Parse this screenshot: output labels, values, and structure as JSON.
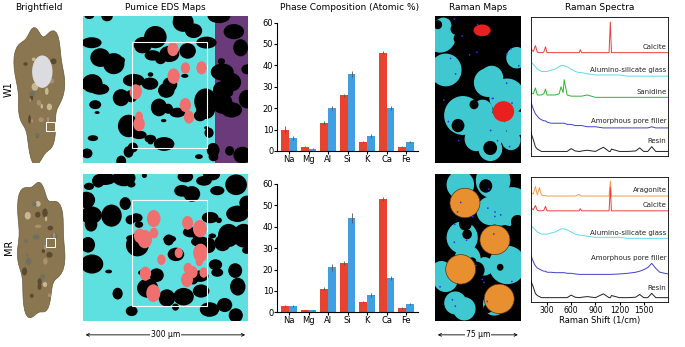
{
  "panels": {
    "headers": [
      "Brightfield",
      "Pumice EDS Maps",
      "Phase Composition (Atomic %)",
      "Raman Maps",
      "Raman Spectra"
    ],
    "rows": [
      "W1",
      "MR"
    ],
    "scale_bars": [
      "300 µm",
      "75 µm"
    ]
  },
  "chart_data": [
    {
      "type": "bar",
      "categories": [
        "Na",
        "Mg",
        "Al",
        "Si",
        "K",
        "Ca",
        "Fe"
      ],
      "ylim": [
        0,
        60
      ],
      "yticks": [
        0,
        10,
        20,
        30,
        40,
        50,
        60
      ],
      "grid": false,
      "series": [
        {
          "color": "#e8432e",
          "values": [
            10,
            2,
            13,
            26,
            4,
            46,
            2
          ],
          "error": [
            1.5,
            0.3,
            0.8,
            0.8,
            0.5,
            0.5,
            0.3
          ]
        },
        {
          "color": "#3f9fe0",
          "values": [
            6,
            1,
            20,
            36,
            7,
            20,
            4
          ],
          "error": [
            1,
            0.3,
            1,
            1.5,
            0.8,
            0.8,
            0.5
          ]
        }
      ]
    },
    {
      "type": "bar",
      "categories": [
        "Na",
        "Mg",
        "Al",
        "Si",
        "K",
        "Ca",
        "Fe"
      ],
      "ylim": [
        0,
        60
      ],
      "yticks": [
        0,
        10,
        20,
        30,
        40,
        50,
        60
      ],
      "grid": false,
      "series": [
        {
          "color": "#e8432e",
          "values": [
            3,
            1,
            11,
            23,
            5,
            53,
            2
          ],
          "error": [
            0.6,
            0.3,
            0.8,
            0.8,
            0.5,
            1,
            0.3
          ]
        },
        {
          "color": "#3f9fe0",
          "values": [
            3,
            1,
            21,
            44,
            8,
            16,
            4
          ],
          "error": [
            0.5,
            0.2,
            1.5,
            2.5,
            1,
            1,
            0.5
          ]
        }
      ]
    },
    {
      "type": "line",
      "tick_labels": false,
      "xlim": [
        100,
        1800
      ],
      "ylim": [
        -0.1,
        5.8
      ],
      "x": [
        100,
        130,
        156,
        180,
        206,
        230,
        260,
        282,
        300,
        350,
        400,
        450,
        475,
        500,
        513,
        550,
        600,
        650,
        700,
        712,
        730,
        800,
        900,
        1000,
        1070,
        1086,
        1100,
        1200,
        1300,
        1400,
        1450,
        1500,
        1550,
        1600,
        1650,
        1700,
        1800
      ],
      "series": [
        {
          "name": "Calcite",
          "color": "#e8413a",
          "line_style": "solid",
          "values": [
            4.45,
            4.35,
            4.6,
            4.32,
            4.3,
            4.3,
            4.32,
            4.55,
            4.3,
            4.3,
            4.3,
            4.3,
            4.3,
            4.3,
            4.3,
            4.3,
            4.3,
            4.3,
            4.3,
            4.42,
            4.3,
            4.3,
            4.3,
            4.3,
            4.3,
            5.6,
            4.3,
            4.3,
            4.3,
            4.3,
            4.3,
            4.3,
            4.3,
            4.3,
            4.3,
            4.3,
            4.3
          ]
        },
        {
          "name": "Alumino-silicate glass",
          "color": "#66d8ee",
          "line_style": "solid",
          "values": [
            3.9,
            3.8,
            3.7,
            3.6,
            3.55,
            3.5,
            3.5,
            3.5,
            3.5,
            3.55,
            3.6,
            3.7,
            3.75,
            3.75,
            3.75,
            3.7,
            3.6,
            3.5,
            3.45,
            3.45,
            3.45,
            3.4,
            3.35,
            3.35,
            3.35,
            3.35,
            3.35,
            3.35,
            3.3,
            3.3,
            3.3,
            3.3,
            3.3,
            3.3,
            3.3,
            3.3,
            3.3
          ]
        },
        {
          "name": "Sanidine",
          "color": "#2fb52f",
          "line_style": "solid",
          "values": [
            2.6,
            2.55,
            2.8,
            2.5,
            2.5,
            2.5,
            2.55,
            2.75,
            2.5,
            2.5,
            2.5,
            2.55,
            2.85,
            2.6,
            3.15,
            2.5,
            2.45,
            2.45,
            2.45,
            2.45,
            2.45,
            2.5,
            2.4,
            2.4,
            2.4,
            2.4,
            2.4,
            2.4,
            2.4,
            2.4,
            2.4,
            2.4,
            2.4,
            2.4,
            2.4,
            2.4,
            2.4
          ]
        },
        {
          "name": "Amorphous pore filler",
          "color": "#4040c8",
          "line_style": "solid",
          "values": [
            2.2,
            1.9,
            1.7,
            1.6,
            1.5,
            1.45,
            1.4,
            1.4,
            1.35,
            1.3,
            1.3,
            1.3,
            1.3,
            1.3,
            1.3,
            1.25,
            1.25,
            1.2,
            1.2,
            1.2,
            1.2,
            1.15,
            1.15,
            1.1,
            1.1,
            1.1,
            1.1,
            1.1,
            1.1,
            1.1,
            1.1,
            1.1,
            1.1,
            1.15,
            1.1,
            1.1,
            1.1
          ]
        },
        {
          "name": "Resin",
          "color": "#202020",
          "line_style": "solid",
          "values": [
            0.9,
            0.6,
            0.3,
            0.2,
            0.15,
            0.1,
            0.1,
            0.1,
            0.1,
            0.1,
            0.1,
            0.1,
            0.1,
            0.1,
            0.1,
            0.1,
            0.22,
            0.12,
            0.1,
            0.1,
            0.12,
            0.15,
            0.1,
            0.28,
            0.1,
            0.1,
            0.2,
            0.1,
            0.1,
            0.12,
            0.25,
            0.1,
            0.1,
            0.3,
            0.1,
            0.1,
            0.1
          ]
        }
      ]
    },
    {
      "type": "line",
      "tick_labels": "x",
      "x_label": "Raman Shift (1/cm)",
      "xlim": [
        100,
        1800
      ],
      "xticks": [
        300,
        600,
        900,
        1200,
        1500
      ],
      "ylim": [
        -0.1,
        5.8
      ],
      "x": [
        100,
        130,
        156,
        180,
        206,
        230,
        260,
        282,
        300,
        350,
        400,
        450,
        475,
        500,
        513,
        550,
        600,
        650,
        700,
        712,
        730,
        800,
        900,
        1000,
        1070,
        1086,
        1100,
        1200,
        1300,
        1400,
        1450,
        1500,
        1550,
        1600,
        1650,
        1700,
        1800
      ],
      "series": [
        {
          "name": "Aragonite",
          "color": "#f39c4a",
          "line_style": "solid",
          "values": [
            5.05,
            5.0,
            5.35,
            4.95,
            5.3,
            4.95,
            4.92,
            4.92,
            4.9,
            4.9,
            4.9,
            4.9,
            4.9,
            4.9,
            4.9,
            4.9,
            4.9,
            4.9,
            4.98,
            4.92,
            4.9,
            4.9,
            4.9,
            4.9,
            4.9,
            5.6,
            4.9,
            4.9,
            4.9,
            4.9,
            4.9,
            4.9,
            4.9,
            4.9,
            4.9,
            4.9,
            4.9
          ]
        },
        {
          "name": "Calcite",
          "color": "#e8413a",
          "line_style": "solid",
          "values": [
            4.35,
            4.25,
            4.45,
            4.22,
            4.2,
            4.2,
            4.22,
            4.42,
            4.2,
            4.2,
            4.2,
            4.2,
            4.2,
            4.2,
            4.2,
            4.2,
            4.2,
            4.2,
            4.2,
            4.3,
            4.2,
            4.2,
            4.2,
            4.2,
            4.2,
            5.3,
            4.2,
            4.2,
            4.2,
            4.2,
            4.2,
            4.2,
            4.2,
            4.2,
            4.2,
            4.2,
            4.2
          ]
        },
        {
          "name": "Alumino-silicate glass",
          "color": "#66d8ee",
          "line_style": "solid",
          "values": [
            3.5,
            3.4,
            3.3,
            3.2,
            3.15,
            3.1,
            3.1,
            3.1,
            3.1,
            3.15,
            3.2,
            3.3,
            3.35,
            3.35,
            3.35,
            3.3,
            3.2,
            3.1,
            3.05,
            3.05,
            3.05,
            3.0,
            2.95,
            2.95,
            2.95,
            2.95,
            2.95,
            2.95,
            2.9,
            2.9,
            2.9,
            2.9,
            2.9,
            2.9,
            2.9,
            2.9,
            2.9
          ]
        },
        {
          "name": "Amorphous pore filler",
          "color": "#4040c8",
          "line_style": "solid",
          "values": [
            2.1,
            1.8,
            1.6,
            1.5,
            1.45,
            1.4,
            1.35,
            1.35,
            1.3,
            1.3,
            1.28,
            1.28,
            1.28,
            1.28,
            1.28,
            1.25,
            1.25,
            1.22,
            1.2,
            1.2,
            1.2,
            1.2,
            1.2,
            1.2,
            1.2,
            1.2,
            1.2,
            1.22,
            1.25,
            1.3,
            1.35,
            1.42,
            1.52,
            1.72,
            1.48,
            1.3,
            1.22
          ]
        },
        {
          "name": "Resin",
          "color": "#202020",
          "line_style": "solid",
          "values": [
            0.9,
            0.6,
            0.3,
            0.2,
            0.15,
            0.1,
            0.1,
            0.1,
            0.1,
            0.1,
            0.1,
            0.1,
            0.1,
            0.1,
            0.1,
            0.1,
            0.22,
            0.12,
            0.1,
            0.1,
            0.12,
            0.15,
            0.1,
            0.28,
            0.1,
            0.1,
            0.2,
            0.1,
            0.1,
            0.12,
            0.25,
            0.1,
            0.1,
            0.3,
            0.1,
            0.1,
            0.1
          ]
        }
      ]
    }
  ]
}
